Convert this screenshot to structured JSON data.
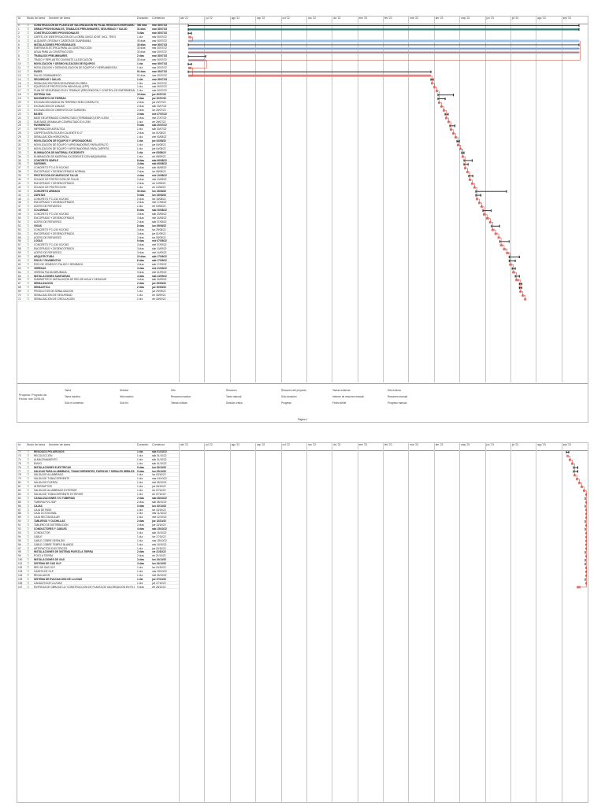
{
  "header": {
    "id": "Id",
    "mode": "Modo de tarea",
    "name": "Nombre de tarea",
    "duration": "Duración",
    "start": "Comienzo"
  },
  "timeline": {
    "months": [
      "abr '22",
      "jul '22",
      "ago '22",
      "sep '22",
      "oct '22",
      "nov '22",
      "dic '22",
      "ene '23",
      "feb '23",
      "mar '23",
      "abr '23",
      "may '23",
      "jun '23",
      "jul '23",
      "ago '23",
      "sep '23"
    ]
  },
  "page1": {
    "rows": [
      {
        "id": "0",
        "name": "CONSTRUCCIÓN DE PLANTA DE VALORIZACIÓN EN FILIAL RESIDUOS INORGÁNICO Y PLANTA DE COMPOSTAJE EXISTENTE Y ENFUNCIONAMIENTO EN EL DISTRITO DE CHANCHAMAYO, PROVINCIA DE CHANCHAMAYO, DEPARTAMENTO DE JUNIN",
        "dur": "360 días",
        "start": "mar 30/07/22",
        "sum": true
      },
      {
        "id": "1",
        "name": "OBRAS PROVISIONALES, TRABAJOS PRELIMINARES, SEGURIDAD Y SALUD",
        "dur": "31 días",
        "start": "mar 30/07/22",
        "sum": true
      },
      {
        "id": "2",
        "name": "CONSTRUCCIONES PROVISIONALES",
        "dur": "3 días",
        "start": "mar 30/07/22",
        "sum": true
      },
      {
        "id": "3",
        "name": "CARTEL DE IDENTIFICACIÓN DE LA OBRA 3.60X2.40 MT. INCL. TEKO",
        "dur": "1 día",
        "start": "mar 30/07/22",
        "sum": false
      },
      {
        "id": "4",
        "name": "ALQUILER, OFICINA Y CASETA DE GUARDIANIA",
        "dur": "30 días",
        "start": "mar 30/07/22",
        "sum": false
      },
      {
        "id": "5",
        "name": "INSTALACIONES PROVISIONALES",
        "dur": "30 días",
        "start": "mar 30/07/22",
        "sum": true
      },
      {
        "id": "6",
        "name": "ENERGÍA ELÉCTRICA PARA LA CONSTRUCCIÓN",
        "dur": "30 días",
        "start": "mar 30/07/22",
        "sum": false
      },
      {
        "id": "7",
        "name": "AGUA PARA LA CONSTRUCCIÓN",
        "dur": "30 días",
        "start": "mar 30/07/22",
        "sum": false
      },
      {
        "id": "8",
        "name": "TRABAJOS PRELIMINARES",
        "dur": "2 días",
        "start": "mar 30/07/22",
        "sum": true
      },
      {
        "id": "9",
        "name": "TRAZO Y REPLANTEO DURANTE LA EJECUCIÓN",
        "dur": "30 días",
        "start": "mar 30/07/22",
        "sum": false
      },
      {
        "id": "10",
        "name": "MOVILIZACIÓN Y DESMOVILIZACIÓN DE EQUIPOS",
        "dur": "1 día",
        "start": "mar 30/07/22",
        "sum": true
      },
      {
        "id": "11",
        "name": "MOVILIZACIÓN Y DESMOVILIZACIÓN DE EQUIPOS Y HERRAMIENTAS",
        "dur": "1 día",
        "start": "mar 30/07/22",
        "sum": false
      },
      {
        "id": "12",
        "name": "FASES",
        "dur": "91 días",
        "start": "mar 30/07/22",
        "sum": true
      },
      {
        "id": "13",
        "name": "FALSO CERRAMIENTO",
        "dur": "91 días",
        "start": "mar 30/07/22",
        "sum": false
      },
      {
        "id": "14",
        "name": "SEGURIDAD Y SALUD",
        "dur": "1 día",
        "start": "mar 30/07/22",
        "sum": true
      },
      {
        "id": "15",
        "name": "SEÑALIZACIÓN PARA SEGURIDAD EN OBRA",
        "dur": "1 día",
        "start": "mar 30/07/22",
        "sum": false
      },
      {
        "id": "16",
        "name": "EQUIPOS DE PROTECCIÓN INDIVIDUAL (EPP)",
        "dur": "1 día",
        "start": "mar 30/07/22",
        "sum": false
      },
      {
        "id": "17",
        "name": "PLAN DE SEGURIDAD EN EL TRABAJO (PREVENCIÓN Y CONTROL DE ENFERMEDADES)",
        "dur": "1 día",
        "start": "mar 30/07/22",
        "sum": false
      },
      {
        "id": "18",
        "name": "SISTEMA VIAL",
        "dur": "15 días",
        "start": "jue 20/07/22",
        "sum": true
      },
      {
        "id": "19",
        "name": "MOVIMIENTO DE TIERRAS",
        "dur": "7 días",
        "start": "jue 20/07/22",
        "sum": true
      },
      {
        "id": "20",
        "name": "EXCAVACIÓN MASIVA EN TERRENO SEMI COMPACTO",
        "dur": "2 días",
        "start": "jue 20/07/22",
        "sum": false
      },
      {
        "id": "21",
        "name": "EXCAVACIÓN DE ZANJAS",
        "dur": "2 días",
        "start": "sáb 23/07/22",
        "sum": false
      },
      {
        "id": "22",
        "name": "EXCAVACIÓN DE CIMIENTOS DE SARDINEL",
        "dur": "2 días",
        "start": "lun 25/07/22",
        "sum": false
      },
      {
        "id": "23",
        "name": "BASES",
        "dur": "3 días",
        "start": "mié 27/07/22",
        "sum": true
      },
      {
        "id": "24",
        "name": "BASE DE AFIRMADO COMPACTADO (TERMINADO) ESP=0.20M",
        "dur": "2 días",
        "start": "mié 27/07/22",
        "sum": false
      },
      {
        "id": "25",
        "name": "SUB BASE GRANULAR COMPACTADO E=0.20M",
        "dur": "1 día",
        "start": "vie 29/07/22",
        "sum": false
      },
      {
        "id": "26",
        "name": "PAVIMENTOS",
        "dur": "5 días",
        "start": "sáb 30/07/22",
        "sum": true
      },
      {
        "id": "27",
        "name": "IMPRIMACIÓN ASFÁLTICA",
        "dur": "1 día",
        "start": "sáb 30/07/22",
        "sum": false
      },
      {
        "id": "28",
        "name": "CARPETA ASFÁLTICA EN CALIENTE E=2\"",
        "dur": "2 días",
        "start": "lun 01/08/22",
        "sum": false
      },
      {
        "id": "29",
        "name": "SEÑALIZACIÓN HORIZONTAL",
        "dur": "1 día",
        "start": "mié 03/08/22",
        "sum": false
      },
      {
        "id": "30",
        "name": "MOVILIZACIÓN DE EQUIPOS Y APISONADORAS",
        "dur": "1 día",
        "start": "jue 04/08/22",
        "sum": true
      },
      {
        "id": "31",
        "name": "MOVILIZACIÓN DE EQUIPO Y APISONADORAS PARA ASFALTO",
        "dur": "1 día",
        "start": "jue 04/08/22",
        "sum": false
      },
      {
        "id": "32",
        "name": "MOVILIZACIÓN DE EQUIPO Y APISONADORAS PARA CARPETA",
        "dur": "1 día",
        "start": "jue 04/08/22",
        "sum": false
      },
      {
        "id": "33",
        "name": "ELIMINACIÓN DE MATERIAL EXCEDENTE",
        "dur": "1 día",
        "start": "vie 05/08/22",
        "sum": true
      },
      {
        "id": "34",
        "name": "ELIMINACIÓN DE MATERIAL EXCEDENTE CON MAQUINARIA",
        "dur": "1 día",
        "start": "vie 05/08/22",
        "sum": false
      },
      {
        "id": "35",
        "name": "CONCRETO SIMPLE",
        "dur": "8 días",
        "start": "sáb 06/08/22",
        "sum": true
      },
      {
        "id": "36",
        "name": "SARDINEL",
        "dur": "4 días",
        "start": "sáb 06/08/22",
        "sum": true
      },
      {
        "id": "37",
        "name": "CONCRETO F'C=175 KG/CM2",
        "dur": "2 días",
        "start": "sáb 06/08/22",
        "sum": false
      },
      {
        "id": "38",
        "name": "ENCOFRADO Y DESENCOFRADO NORMAL",
        "dur": "2 días",
        "start": "lun 08/08/22",
        "sum": false
      },
      {
        "id": "39",
        "name": "PROTECCIÓN DE MUROS DE TALUD",
        "dur": "4 días",
        "start": "mié 10/08/22",
        "sum": true
      },
      {
        "id": "40",
        "name": "SOLADO DE PROTECCIÓN DE TALUD",
        "dur": "2 días",
        "start": "mié 10/08/22",
        "sum": false
      },
      {
        "id": "41",
        "name": "ENCOFRADO Y DESENCOFRADO",
        "dur": "2 días",
        "start": "vie 12/08/22",
        "sum": false
      },
      {
        "id": "42",
        "name": "SOLADO DE PROTECCIÓN",
        "dur": "1 día",
        "start": "vie 12/08/22",
        "sum": false
      },
      {
        "id": "43",
        "name": "CONCRETO ARMADO",
        "dur": "30 días",
        "start": "lun 15/08/22",
        "sum": true
      },
      {
        "id": "44",
        "name": "ZAPATAS",
        "dur": "5 días",
        "start": "lun 15/08/22",
        "sum": true
      },
      {
        "id": "45",
        "name": "CONCRETO F'C=210 KG/CM2",
        "dur": "2 días",
        "start": "lun 15/08/22",
        "sum": false
      },
      {
        "id": "46",
        "name": "ENCOFRADO Y DESENCOFRADO",
        "dur": "2 días",
        "start": "mié 17/08/22",
        "sum": false
      },
      {
        "id": "47",
        "name": "ACERO DE REFUERZO",
        "dur": "1 día",
        "start": "vie 19/08/22",
        "sum": false
      },
      {
        "id": "48",
        "name": "COLUMNAS",
        "dur": "8 días",
        "start": "sáb 20/08/22",
        "sum": true
      },
      {
        "id": "49",
        "name": "CONCRETO F'C=210 KG/CM2",
        "dur": "3 días",
        "start": "sáb 20/08/22",
        "sum": false
      },
      {
        "id": "50",
        "name": "ENCOFRADO Y DESENCOFRADO",
        "dur": "3 días",
        "start": "mié 24/08/22",
        "sum": false
      },
      {
        "id": "51",
        "name": "ACERO DE REFUERZO",
        "dur": "2 días",
        "start": "sáb 27/08/22",
        "sum": false
      },
      {
        "id": "52",
        "name": "VIGAS",
        "dur": "8 días",
        "start": "lun 29/08/22",
        "sum": true
      },
      {
        "id": "53",
        "name": "CONCRETO F'C=210 KG/CM2",
        "dur": "3 días",
        "start": "lun 29/08/22",
        "sum": false
      },
      {
        "id": "54",
        "name": "ENCOFRADO Y DESENCOFRADO",
        "dur": "3 días",
        "start": "jue 01/09/22",
        "sum": false
      },
      {
        "id": "55",
        "name": "ACERO DE REFUERZO",
        "dur": "2 días",
        "start": "lun 05/09/22",
        "sum": false
      },
      {
        "id": "56",
        "name": "LOSAS",
        "dur": "9 días",
        "start": "mié 07/09/22",
        "sum": true
      },
      {
        "id": "57",
        "name": "CONCRETO F'C=210 KG/CM2",
        "dur": "3 días",
        "start": "mié 07/09/22",
        "sum": false
      },
      {
        "id": "58",
        "name": "ENCOFRADO Y DESENCOFRADO",
        "dur": "3 días",
        "start": "sáb 10/09/22",
        "sum": false
      },
      {
        "id": "59",
        "name": "ACERO DE REFUERZO",
        "dur": "3 días",
        "start": "mié 14/09/22",
        "sum": false
      },
      {
        "id": "60",
        "name": "ARQUITECTURA",
        "dur": "10 días",
        "start": "sáb 17/09/22",
        "sum": true
      },
      {
        "id": "61",
        "name": "PISOS Y PAVIMENTOS",
        "dur": "6 días",
        "start": "sáb 17/09/22",
        "sum": true
      },
      {
        "id": "62",
        "name": "PISO DE CEMENTO PULIDO Y BRUÑADO",
        "dur": "3 días",
        "start": "sáb 17/09/22",
        "sum": false
      },
      {
        "id": "63",
        "name": "VEREDAS",
        "dur": "3 días",
        "start": "mié 21/09/22",
        "sum": true
      },
      {
        "id": "64",
        "name": "VEREDA PULIDA BRUÑADA",
        "dur": "3 días",
        "start": "mié 21/09/22",
        "sum": false
      },
      {
        "id": "65",
        "name": "INSTALACIONES SANITARIAS",
        "dur": "4 días",
        "start": "sáb 24/09/22",
        "sum": true
      },
      {
        "id": "66",
        "name": "SUMINISTRO E INSTALACIÓN DE RED DE AGUA Y DESAGUE",
        "dur": "4 días",
        "start": "sáb 24/09/22",
        "sum": false
      },
      {
        "id": "67",
        "name": "SEÑALIZACIÓN",
        "dur": "2 días",
        "start": "jue 29/09/22",
        "sum": true
      },
      {
        "id": "68",
        "name": "SEÑALÉTICA",
        "dur": "2 días",
        "start": "jue 29/09/22",
        "sum": true
      },
      {
        "id": "69",
        "name": "PRODUCTOS DE SEÑALIZACIÓN",
        "dur": "1 día",
        "start": "jue 29/09/22",
        "sum": false
      },
      {
        "id": "70",
        "name": "SEÑALIZACIÓN DE SEGURIDAD",
        "dur": "1 día",
        "start": "vie 30/09/22",
        "sum": false
      },
      {
        "id": "71",
        "name": "SEÑALIZACIÓN DE CIRCULACIÓN",
        "dur": "1 día",
        "start": "vie 30/09/22",
        "sum": false
      }
    ]
  },
  "page2": {
    "rows": [
      {
        "id": "72",
        "name": "RESIDUOS PELIGROSOS",
        "dur": "1 día",
        "start": "sáb 01/10/22",
        "sum": true
      },
      {
        "id": "73",
        "name": "RECOLECCIÓN",
        "dur": "1 día",
        "start": "sáb 01/10/22",
        "sum": false
      },
      {
        "id": "74",
        "name": "ALMACENAMIENTO",
        "dur": "1 día",
        "start": "sáb 01/10/22",
        "sum": false
      },
      {
        "id": "75",
        "name": "ENVÍO",
        "dur": "1 día",
        "start": "sáb 01/10/22",
        "sum": false
      },
      {
        "id": "76",
        "name": "INSTALACIONES ELÉCTRICAS",
        "dur": "5 días",
        "start": "lun 03/10/22",
        "sum": true
      },
      {
        "id": "77",
        "name": "SALIDAS PARA ALUMBRADO, TOMACORRIENTES, FUERZAS Y SEÑALES DÉBILES",
        "dur": "5 días",
        "start": "lun 03/10/22",
        "sum": true
      },
      {
        "id": "78",
        "name": "SALIDA DE ALUMBRADO",
        "dur": "1 día",
        "start": "lun 03/10/22",
        "sum": false
      },
      {
        "id": "79",
        "name": "SALIDA DE TOMACORRIENTE",
        "dur": "1 día",
        "start": "mar 04/10/22",
        "sum": false
      },
      {
        "id": "80",
        "name": "SALIDA DE FUERZA",
        "dur": "1 día",
        "start": "mié 05/10/22",
        "sum": false
      },
      {
        "id": "81",
        "name": "INTERRUPTOR",
        "dur": "1 día",
        "start": "jue 06/10/22",
        "sum": false
      },
      {
        "id": "82",
        "name": "SALIDA DE ALUMBRADO EXTERIOR",
        "dur": "1 día",
        "start": "vie 07/10/22",
        "sum": false
      },
      {
        "id": "83",
        "name": "SALIDA DE TOMACORRIENTE EXTERIOR",
        "dur": "1 día",
        "start": "vie 07/10/22",
        "sum": false
      },
      {
        "id": "84",
        "name": "CANALIZACIONES Y/O TUBERÍAS",
        "dur": "2 días",
        "start": "sáb 08/10/22",
        "sum": true
      },
      {
        "id": "85",
        "name": "TUBERÍA PVC-SAP",
        "dur": "2 días",
        "start": "sáb 08/10/22",
        "sum": false
      },
      {
        "id": "86",
        "name": "CAJAS",
        "dur": "3 días",
        "start": "lun 10/10/22",
        "sum": true
      },
      {
        "id": "87",
        "name": "CAJA DE PASE",
        "dur": "1 día",
        "start": "lun 10/10/22",
        "sum": false
      },
      {
        "id": "88",
        "name": "CAJA OCTOGONAL",
        "dur": "1 día",
        "start": "mar 11/10/22",
        "sum": false
      },
      {
        "id": "89",
        "name": "CAJA RECTANGULAR",
        "dur": "1 día",
        "start": "mié 12/10/22",
        "sum": false
      },
      {
        "id": "90",
        "name": "TABLEROS Y CUCHILLAS",
        "dur": "2 días",
        "start": "jue 13/10/22",
        "sum": true
      },
      {
        "id": "91",
        "name": "TABLERO DE DISTRIBUCIÓN",
        "dur": "2 días",
        "start": "jue 13/10/22",
        "sum": false
      },
      {
        "id": "92",
        "name": "CONDUCTORES Y CABLES",
        "dur": "4 días",
        "start": "sáb 15/10/22",
        "sum": true
      },
      {
        "id": "93",
        "name": "CONDUCTOR",
        "dur": "1 día",
        "start": "sáb 15/10/22",
        "sum": false
      },
      {
        "id": "94",
        "name": "CABLE",
        "dur": "1 día",
        "start": "lun 17/10/22",
        "sum": false
      },
      {
        "id": "95",
        "name": "CABLE COBRE DESNUDO",
        "dur": "1 día",
        "start": "mar 18/10/22",
        "sum": false
      },
      {
        "id": "96",
        "name": "CABLE COBRE TEMPLE BLANDO",
        "dur": "1 día",
        "start": "mié 19/10/22",
        "sum": false
      },
      {
        "id": "97",
        "name": "ARTEFACTOS ELÉCTRICOS",
        "dur": "1 día",
        "start": "jue 20/10/22",
        "sum": false
      },
      {
        "id": "98",
        "name": "INSTALACIONES DE SISTEMA PUESTA A TIERRA",
        "dur": "2 días",
        "start": "vie 21/10/22",
        "sum": true
      },
      {
        "id": "99",
        "name": "POZO A TIERRA",
        "dur": "2 días",
        "start": "vie 21/10/22",
        "sum": false
      },
      {
        "id": "100",
        "name": "INSTALACIONES DE GAS",
        "dur": "3 días",
        "start": "lun 24/10/22",
        "sum": true
      },
      {
        "id": "101",
        "name": "SISTEMA DE GAS GLP",
        "dur": "3 días",
        "start": "lun 24/10/22",
        "sum": true
      },
      {
        "id": "102",
        "name": "RED DE GAS GLP",
        "dur": "1 día",
        "start": "lun 24/10/22",
        "sum": false
      },
      {
        "id": "103",
        "name": "CASETA DE GLP",
        "dur": "1 día",
        "start": "mar 25/10/22",
        "sum": false
      },
      {
        "id": "104",
        "name": "REGULADOR",
        "dur": "1 día",
        "start": "mié 26/10/22",
        "sum": false
      },
      {
        "id": "105",
        "name": "SISTEMA DE EVACUACIÓN DE LLUVIAS",
        "dur": "1 día",
        "start": "jue 27/10/22",
        "sum": true
      },
      {
        "id": "106",
        "name": "CANALETA DE LLUVIAS",
        "dur": "1 día",
        "start": "jue 27/10/22",
        "sum": false
      },
      {
        "id": "107",
        "name": "ENTREGA DE OBRA DE LA \"CONSTRUCCIÓN DE PLANTA DE VALORIZACIÓN EN FILIAL RESIDUOS INORGÁNICO Y PLANTA DE COMPOSTAJE EXISTENTE Y ENFUNCIONAMIENTO EN EL DISTRITO DE CHANCHAMAYO - PROVINCIA DE CHANCHAMAYO - DEPARTAMENTO JUNIN\"",
        "dur": "0 días",
        "start": "vie 28/10/22",
        "sum": false
      }
    ]
  },
  "legend": {
    "project_label": "Proyecto: Proyecto de\nFecha: mié 20/01/21",
    "items": [
      "Tarea",
      "División",
      "Hito",
      "Resumen",
      "Resumen del proyecto",
      "Tareas externas",
      "Hito externo",
      "Tarea inactiva",
      "Hito inactivo",
      "Resumen inactivo",
      "Tarea manual",
      "Sólo duración",
      "Informe de resumen manual",
      "Resumen manual",
      "Sólo el comienzo",
      "Sólo fin",
      "Tareas críticas",
      "División crítica",
      "Progreso",
      "Fecha límite",
      "Progreso manual"
    ]
  },
  "page_label": "Página 1",
  "colors": {
    "task": "#9cc3e6",
    "critical": "#e8837f",
    "summary": "#1f1f1f",
    "project_summary": "#2f7c7a",
    "grid": "#c9c9c9"
  }
}
